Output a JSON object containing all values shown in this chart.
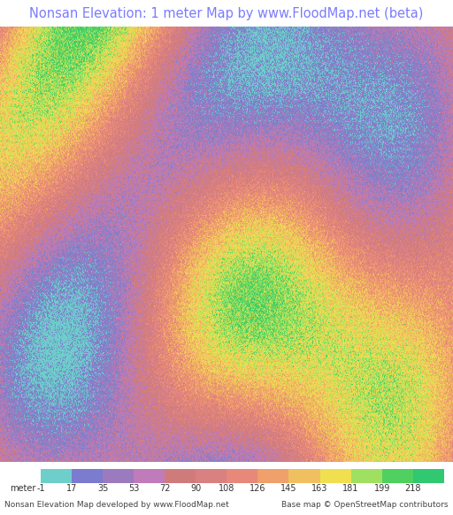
{
  "title": "Nonsan Elevation: 1 meter Map by www.FloodMap.net (beta)",
  "title_color": "#7b7bff",
  "title_bg": "#ede8e0",
  "colorbar_values": [
    -1,
    17,
    35,
    53,
    72,
    90,
    108,
    126,
    145,
    163,
    181,
    199,
    218
  ],
  "colorbar_colors": [
    "#6ecfca",
    "#7b7bcf",
    "#9b7bbd",
    "#c07bba",
    "#d07b7b",
    "#d98080",
    "#e8887a",
    "#f0a06a",
    "#f0c060",
    "#f0e050",
    "#a0e060",
    "#50d060",
    "#30c870"
  ],
  "footer_left": "Nonsan Elevation Map developed by www.FloodMap.net",
  "footer_right": "Base map © OpenStreetMap contributors",
  "map_bg_color": "#c8d8c0",
  "figsize": [
    5.12,
    5.82
  ],
  "dpi": 100
}
